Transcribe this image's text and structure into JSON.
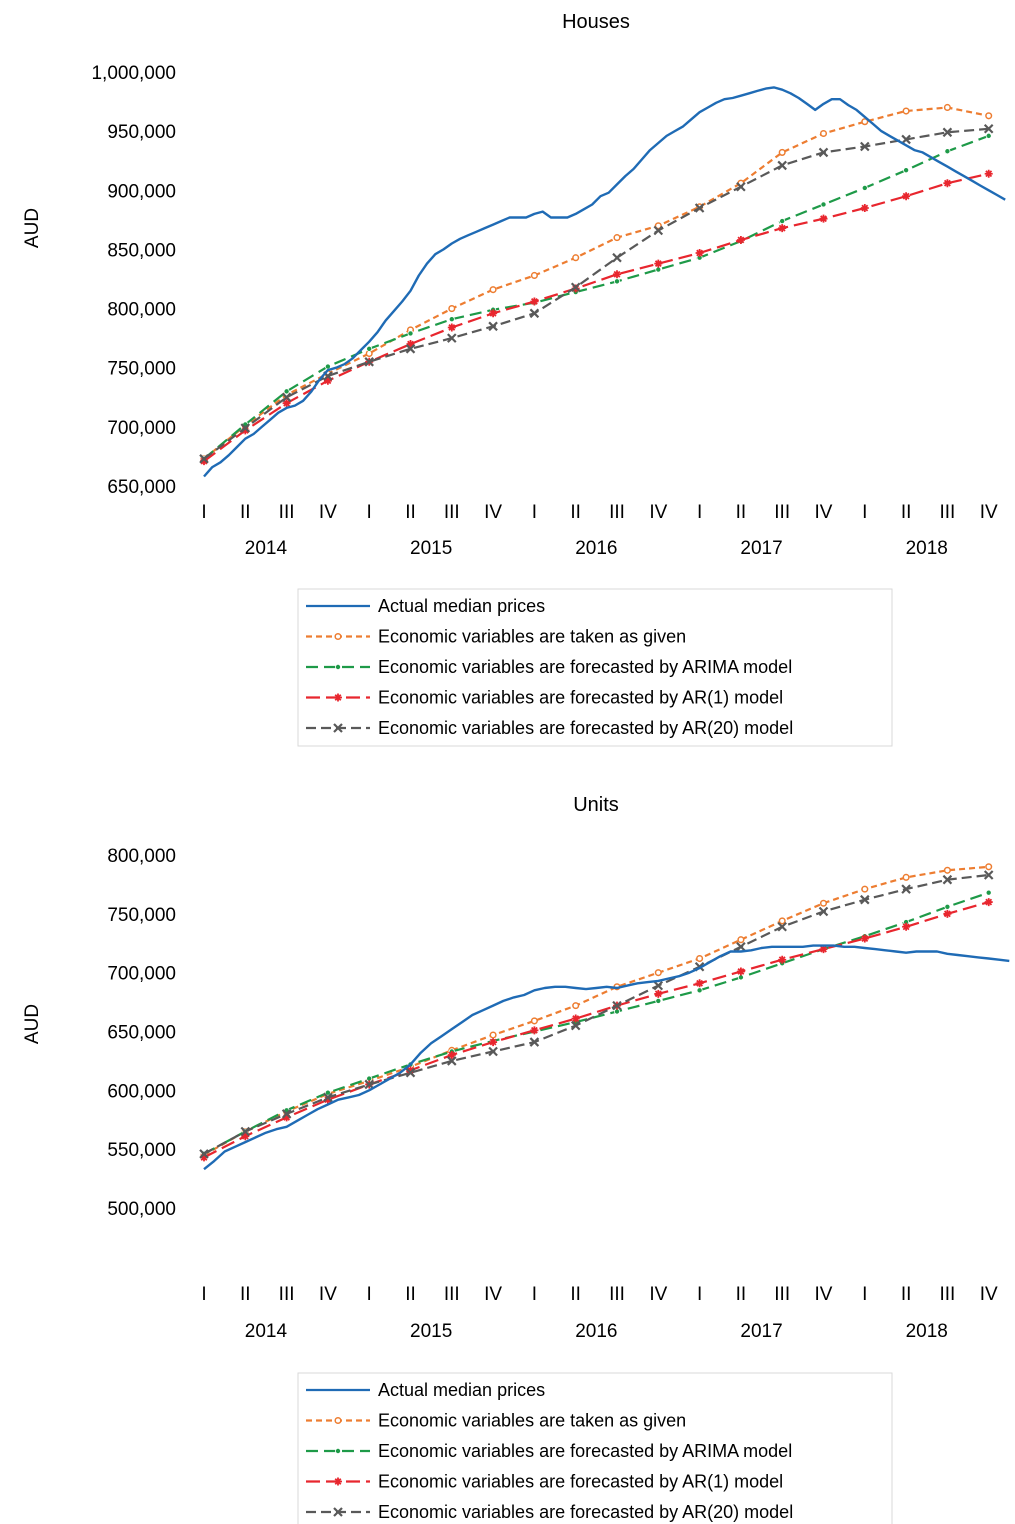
{
  "series_styles": [
    {
      "name": "Actual median prices",
      "color": "#1F6BB5",
      "dash": "",
      "marker": "none"
    },
    {
      "name": "Economic variables are taken as given",
      "color": "#ED7D31",
      "dash": "6,4",
      "marker": "circle"
    },
    {
      "name": "Economic variables are forecasted by ARIMA model",
      "color": "#1E9A48",
      "dash": "12,6",
      "marker": "dot"
    },
    {
      "name": "Economic variables are forecasted by AR(1) model",
      "color": "#E8262E",
      "dash": "14,6",
      "marker": "star"
    },
    {
      "name": "Economic variables are forecasted by AR(20) model",
      "color": "#595959",
      "dash": "10,5",
      "marker": "x"
    }
  ],
  "chart_data": [
    {
      "type": "line",
      "title": "Houses",
      "ylabel": "AUD",
      "ylim": [
        650000,
        1000000
      ],
      "yticks": [
        "650,000",
        "700,000",
        "750,000",
        "800,000",
        "850,000",
        "900,000",
        "950,000",
        "1,000,000"
      ],
      "quarters": [
        "I",
        "II",
        "III",
        "IV",
        "I",
        "II",
        "III",
        "IV",
        "I",
        "II",
        "III",
        "IV",
        "I",
        "II",
        "III",
        "IV",
        "I",
        "II",
        "III",
        "IV"
      ],
      "years": [
        "2014",
        "2015",
        "2016",
        "2017",
        "2018"
      ],
      "legend_position": "bottom",
      "series": [
        {
          "name": "Actual median prices",
          "marker": "none",
          "x": [
            0,
            0.2,
            0.4,
            0.6,
            0.8,
            1.0,
            1.2,
            1.4,
            1.6,
            1.8,
            2.0,
            2.2,
            2.4,
            2.6,
            2.8,
            3.0,
            3.2,
            3.4,
            3.6,
            3.8,
            4.0,
            4.2,
            4.4,
            4.6,
            4.8,
            5.0,
            5.2,
            5.4,
            5.6,
            5.8,
            6.0,
            6.2,
            6.4,
            6.6,
            6.8,
            7.0,
            7.2,
            7.4,
            7.6,
            7.8,
            8.0,
            8.2,
            8.4,
            8.6,
            8.8,
            9.0,
            9.2,
            9.4,
            9.6,
            9.8,
            10.0,
            10.2,
            10.4,
            10.6,
            10.8,
            11.0,
            11.2,
            11.4,
            11.6,
            11.8,
            12.0,
            12.2,
            12.4,
            12.6,
            12.8,
            13.0,
            13.2,
            13.4,
            13.6,
            13.8,
            14.0,
            14.2,
            14.4,
            14.6,
            14.8,
            15.0,
            15.2,
            15.4,
            15.6,
            15.8,
            16.0,
            16.2,
            16.4,
            16.6,
            16.8,
            17.0,
            17.2,
            17.4,
            17.6,
            17.8,
            18.0,
            18.2,
            18.4,
            18.6,
            18.8,
            19.0,
            19.2,
            19.4
          ],
          "values": [
            658000,
            666000,
            670000,
            676000,
            683000,
            690000,
            694000,
            700000,
            706000,
            712000,
            716000,
            718000,
            722000,
            730000,
            740000,
            748000,
            750000,
            753000,
            758000,
            765000,
            772000,
            780000,
            790000,
            798000,
            806000,
            815000,
            828000,
            838000,
            846000,
            850000,
            855000,
            859000,
            862000,
            865000,
            868000,
            871000,
            874000,
            877000,
            877000,
            877000,
            880000,
            882000,
            877000,
            877000,
            877000,
            880000,
            884000,
            888000,
            895000,
            898000,
            905000,
            912000,
            918000,
            926000,
            934000,
            940000,
            946000,
            950000,
            954000,
            960000,
            966000,
            970000,
            974000,
            977000,
            978000,
            980000,
            982000,
            984000,
            986000,
            987000,
            985000,
            982000,
            978000,
            973000,
            968000,
            973000,
            977000,
            977000,
            972000,
            968000,
            962000,
            956000,
            950000,
            946000,
            942000,
            938000,
            934000,
            932000,
            928000,
            924000,
            920000,
            916000,
            912000,
            908000,
            904000,
            900000,
            896000,
            892000
          ]
        },
        {
          "name": "Economic variables are taken as given",
          "marker": "circle",
          "x": [
            0,
            1,
            2,
            3,
            4,
            5,
            6,
            7,
            8,
            9,
            10,
            11,
            12,
            13,
            14,
            15,
            16,
            17,
            18,
            19
          ],
          "values": [
            673000,
            701000,
            727000,
            745000,
            762000,
            782000,
            800000,
            816000,
            828000,
            843000,
            860000,
            870000,
            886000,
            906000,
            932000,
            948000,
            958000,
            967000,
            970000,
            963000
          ]
        },
        {
          "name": "Economic variables are forecasted by ARIMA model",
          "marker": "dot",
          "x": [
            0,
            1,
            2,
            3,
            4,
            5,
            6,
            7,
            8,
            9,
            10,
            11,
            12,
            13,
            14,
            15,
            16,
            17,
            18,
            19
          ],
          "values": [
            673000,
            702000,
            730000,
            751000,
            766000,
            779000,
            791000,
            799000,
            805000,
            814000,
            823000,
            833000,
            843000,
            857000,
            874000,
            888000,
            902000,
            917000,
            933000,
            946000
          ]
        },
        {
          "name": "Economic variables are forecasted by AR(1) model",
          "marker": "star",
          "x": [
            0,
            1,
            2,
            3,
            4,
            5,
            6,
            7,
            8,
            9,
            10,
            11,
            12,
            13,
            14,
            15,
            16,
            17,
            18,
            19
          ],
          "values": [
            671000,
            697000,
            720000,
            739000,
            755000,
            770000,
            784000,
            796000,
            806000,
            817000,
            829000,
            838000,
            847000,
            858000,
            868000,
            876000,
            885000,
            895000,
            906000,
            914000
          ]
        },
        {
          "name": "Economic variables are forecasted by AR(20) model",
          "marker": "x",
          "x": [
            0,
            1,
            2,
            3,
            4,
            5,
            6,
            7,
            8,
            9,
            10,
            11,
            12,
            13,
            14,
            15,
            16,
            17,
            18,
            19
          ],
          "values": [
            673000,
            699000,
            725000,
            743000,
            755000,
            766000,
            775000,
            785000,
            796000,
            818000,
            843000,
            866000,
            885000,
            903000,
            921000,
            932000,
            937000,
            943000,
            949000,
            952000
          ]
        }
      ]
    },
    {
      "type": "line",
      "title": "Units",
      "ylabel": "AUD",
      "ylim": [
        500000,
        800000
      ],
      "yticks": [
        "500,000",
        "550,000",
        "600,000",
        "650,000",
        "700,000",
        "750,000",
        "800,000"
      ],
      "quarters": [
        "I",
        "II",
        "III",
        "IV",
        "I",
        "II",
        "III",
        "IV",
        "I",
        "II",
        "III",
        "IV",
        "I",
        "II",
        "III",
        "IV",
        "I",
        "II",
        "III",
        "IV"
      ],
      "years": [
        "2014",
        "2015",
        "2016",
        "2017",
        "2018"
      ],
      "legend_position": "bottom",
      "series": [
        {
          "name": "Actual median prices",
          "marker": "none",
          "x": [
            0,
            0.25,
            0.5,
            0.75,
            1.0,
            1.25,
            1.5,
            1.75,
            2.0,
            2.25,
            2.5,
            2.75,
            3.0,
            3.25,
            3.5,
            3.75,
            4.0,
            4.25,
            4.5,
            4.75,
            5.0,
            5.25,
            5.5,
            5.75,
            6.0,
            6.25,
            6.5,
            6.75,
            7.0,
            7.25,
            7.5,
            7.75,
            8.0,
            8.25,
            8.5,
            8.75,
            9.0,
            9.25,
            9.5,
            9.75,
            10.0,
            10.25,
            10.5,
            10.75,
            11.0,
            11.25,
            11.5,
            11.75,
            12.0,
            12.25,
            12.5,
            12.75,
            13.0,
            13.25,
            13.5,
            13.75,
            14.0,
            14.25,
            14.5,
            14.75,
            15.0,
            15.25,
            15.5,
            15.75,
            16.0,
            16.25,
            16.5,
            16.75,
            17.0,
            17.25,
            17.5,
            17.75,
            18.0,
            18.25,
            18.5,
            18.75,
            19.0,
            19.25,
            19.5
          ],
          "values": [
            533000,
            540000,
            548000,
            552000,
            556000,
            560000,
            564000,
            567000,
            569000,
            574000,
            579000,
            584000,
            588000,
            592000,
            594000,
            596000,
            600000,
            605000,
            610000,
            615000,
            622000,
            632000,
            640000,
            646000,
            652000,
            658000,
            664000,
            668000,
            672000,
            676000,
            679000,
            681000,
            685000,
            687000,
            688000,
            688000,
            687000,
            686000,
            687000,
            688000,
            687000,
            689000,
            691000,
            692000,
            693000,
            695000,
            697000,
            700000,
            704000,
            709000,
            714000,
            718000,
            718000,
            719000,
            721000,
            722000,
            722000,
            722000,
            722000,
            723000,
            723000,
            723000,
            722000,
            722000,
            721000,
            720000,
            719000,
            718000,
            717000,
            718000,
            718000,
            718000,
            716000,
            715000,
            714000,
            713000,
            712000,
            711000,
            710000
          ]
        },
        {
          "name": "Economic variables are taken as given",
          "marker": "circle",
          "x": [
            0,
            1,
            2,
            3,
            4,
            5,
            6,
            7,
            8,
            9,
            10,
            11,
            12,
            13,
            14,
            15,
            16,
            17,
            18,
            19
          ],
          "values": [
            545000,
            565000,
            582000,
            597000,
            608000,
            620000,
            634000,
            647000,
            659000,
            672000,
            688000,
            700000,
            712000,
            728000,
            744000,
            759000,
            771000,
            781000,
            787000,
            790000
          ]
        },
        {
          "name": "Economic variables are forecasted by ARIMA model",
          "marker": "dot",
          "x": [
            0,
            1,
            2,
            3,
            4,
            5,
            6,
            7,
            8,
            9,
            10,
            11,
            12,
            13,
            14,
            15,
            16,
            17,
            18,
            19
          ],
          "values": [
            546000,
            565000,
            583000,
            598000,
            610000,
            622000,
            633000,
            642000,
            650000,
            658000,
            667000,
            676000,
            685000,
            696000,
            708000,
            720000,
            731000,
            743000,
            756000,
            768000
          ]
        },
        {
          "name": "Economic variables are forecasted by AR(1) model",
          "marker": "star",
          "x": [
            0,
            1,
            2,
            3,
            4,
            5,
            6,
            7,
            8,
            9,
            10,
            11,
            12,
            13,
            14,
            15,
            16,
            17,
            18,
            19
          ],
          "values": [
            543000,
            561000,
            577000,
            592000,
            605000,
            617000,
            630000,
            641000,
            651000,
            661000,
            672000,
            682000,
            691000,
            701000,
            711000,
            720000,
            729000,
            739000,
            750000,
            760000
          ]
        },
        {
          "name": "Economic variables are forecasted by AR(20) model",
          "marker": "x",
          "x": [
            0,
            1,
            2,
            3,
            4,
            5,
            6,
            7,
            8,
            9,
            10,
            11,
            12,
            13,
            14,
            15,
            16,
            17,
            18,
            19
          ],
          "values": [
            546000,
            565000,
            580000,
            594000,
            605000,
            615000,
            625000,
            633000,
            641000,
            655000,
            672000,
            689000,
            705000,
            722000,
            739000,
            752000,
            762000,
            771000,
            779000,
            783000
          ]
        }
      ]
    }
  ]
}
